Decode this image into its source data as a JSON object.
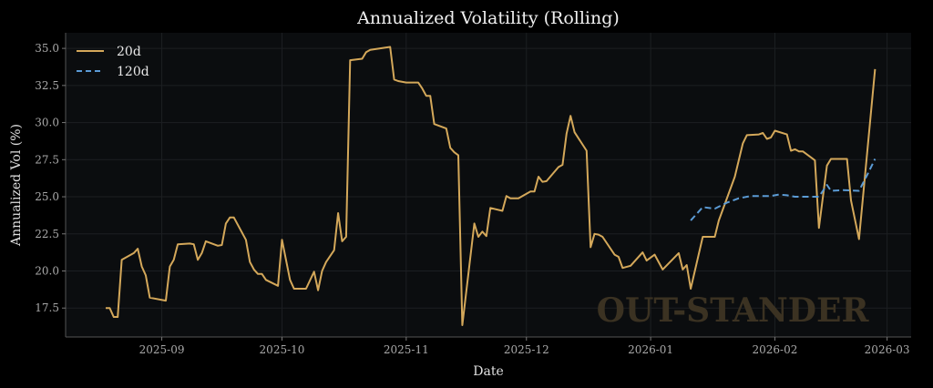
{
  "chart_data": {
    "type": "line",
    "title": "Annualized Volatility (Rolling)",
    "xlabel": "Date",
    "ylabel": "Annualized Vol (%)",
    "xlim": [
      "2025-08-08",
      "2026-03-07"
    ],
    "ylim": [
      15.55,
      36.05
    ],
    "x_ticks": [
      "2025-09",
      "2025-10",
      "2025-11",
      "2025-12",
      "2026-01",
      "2026-02",
      "2026-03"
    ],
    "y_ticks": [
      "17.5",
      "20.0",
      "22.5",
      "25.0",
      "27.5",
      "30.0",
      "32.5",
      "35.0"
    ],
    "grid": true,
    "legend_position": "top-left",
    "watermark": "OUT-STANDER",
    "series": [
      {
        "name": "20d",
        "color": "#d4a85a",
        "style": "solid",
        "points": [
          [
            "2025-08-18",
            17.5
          ],
          [
            "2025-08-19",
            17.5
          ],
          [
            "2025-08-20",
            16.9
          ],
          [
            "2025-08-21",
            16.9
          ],
          [
            "2025-08-22",
            20.75
          ],
          [
            "2025-08-25",
            21.2
          ],
          [
            "2025-08-26",
            21.5
          ],
          [
            "2025-08-27",
            20.3
          ],
          [
            "2025-08-28",
            19.7
          ],
          [
            "2025-08-29",
            18.2
          ],
          [
            "2025-09-02",
            18.0
          ],
          [
            "2025-09-03",
            20.3
          ],
          [
            "2025-09-04",
            20.75
          ],
          [
            "2025-09-05",
            21.8
          ],
          [
            "2025-09-08",
            21.85
          ],
          [
            "2025-09-09",
            21.8
          ],
          [
            "2025-09-10",
            20.75
          ],
          [
            "2025-09-11",
            21.2
          ],
          [
            "2025-09-12",
            22.0
          ],
          [
            "2025-09-15",
            21.7
          ],
          [
            "2025-09-16",
            21.75
          ],
          [
            "2025-09-17",
            23.2
          ],
          [
            "2025-09-18",
            23.6
          ],
          [
            "2025-09-19",
            23.6
          ],
          [
            "2025-09-22",
            22.1
          ],
          [
            "2025-09-23",
            20.6
          ],
          [
            "2025-09-24",
            20.1
          ],
          [
            "2025-09-25",
            19.8
          ],
          [
            "2025-09-26",
            19.8
          ],
          [
            "2025-09-27",
            19.4
          ],
          [
            "2025-09-30",
            19.0
          ],
          [
            "2025-10-01",
            22.1
          ],
          [
            "2025-10-03",
            19.4
          ],
          [
            "2025-10-04",
            18.8
          ],
          [
            "2025-10-07",
            18.8
          ],
          [
            "2025-10-09",
            19.95
          ],
          [
            "2025-10-10",
            18.7
          ],
          [
            "2025-10-11",
            20.0
          ],
          [
            "2025-10-12",
            20.6
          ],
          [
            "2025-10-14",
            21.4
          ],
          [
            "2025-10-15",
            23.9
          ],
          [
            "2025-10-16",
            22.0
          ],
          [
            "2025-10-17",
            22.3
          ],
          [
            "2025-10-18",
            34.2
          ],
          [
            "2025-10-21",
            34.3
          ],
          [
            "2025-10-22",
            34.75
          ],
          [
            "2025-10-23",
            34.9
          ],
          [
            "2025-10-28",
            35.1
          ],
          [
            "2025-10-29",
            32.9
          ],
          [
            "2025-10-30",
            32.8
          ],
          [
            "2025-11-01",
            32.7
          ],
          [
            "2025-11-04",
            32.7
          ],
          [
            "2025-11-05",
            32.3
          ],
          [
            "2025-11-06",
            31.8
          ],
          [
            "2025-11-07",
            31.8
          ],
          [
            "2025-11-08",
            29.9
          ],
          [
            "2025-11-11",
            29.6
          ],
          [
            "2025-11-12",
            28.3
          ],
          [
            "2025-11-13",
            28.0
          ],
          [
            "2025-11-14",
            27.8
          ],
          [
            "2025-11-15",
            16.35
          ],
          [
            "2025-11-18",
            23.2
          ],
          [
            "2025-11-19",
            22.3
          ],
          [
            "2025-11-20",
            22.65
          ],
          [
            "2025-11-21",
            22.35
          ],
          [
            "2025-11-22",
            24.25
          ],
          [
            "2025-11-25",
            24.05
          ],
          [
            "2025-11-26",
            25.05
          ],
          [
            "2025-11-27",
            24.9
          ],
          [
            "2025-11-29",
            24.9
          ],
          [
            "2025-12-02",
            25.35
          ],
          [
            "2025-12-03",
            25.35
          ],
          [
            "2025-12-04",
            26.35
          ],
          [
            "2025-12-05",
            26.0
          ],
          [
            "2025-12-06",
            26.05
          ],
          [
            "2025-12-09",
            27.0
          ],
          [
            "2025-12-10",
            27.15
          ],
          [
            "2025-12-11",
            29.25
          ],
          [
            "2025-12-12",
            30.45
          ],
          [
            "2025-12-13",
            29.35
          ],
          [
            "2025-12-16",
            28.1
          ],
          [
            "2025-12-17",
            21.6
          ],
          [
            "2025-12-18",
            22.5
          ],
          [
            "2025-12-19",
            22.45
          ],
          [
            "2025-12-20",
            22.3
          ],
          [
            "2025-12-23",
            21.1
          ],
          [
            "2025-12-24",
            20.95
          ],
          [
            "2025-12-25",
            20.2
          ],
          [
            "2025-12-27",
            20.35
          ],
          [
            "2025-12-30",
            21.25
          ],
          [
            "2025-12-31",
            20.7
          ],
          [
            "2026-01-02",
            21.1
          ],
          [
            "2026-01-04",
            20.1
          ],
          [
            "2026-01-08",
            21.2
          ],
          [
            "2026-01-09",
            20.1
          ],
          [
            "2026-01-10",
            20.4
          ],
          [
            "2026-01-11",
            18.8
          ],
          [
            "2026-01-14",
            22.3
          ],
          [
            "2026-01-17",
            22.3
          ],
          [
            "2026-01-18",
            23.4
          ],
          [
            "2026-01-22",
            26.35
          ],
          [
            "2026-01-24",
            28.6
          ],
          [
            "2026-01-25",
            29.15
          ],
          [
            "2026-01-28",
            29.2
          ],
          [
            "2026-01-29",
            29.3
          ],
          [
            "2026-01-30",
            28.9
          ],
          [
            "2026-01-31",
            29.0
          ],
          [
            "2026-02-01",
            29.45
          ],
          [
            "2026-02-04",
            29.2
          ],
          [
            "2026-02-05",
            28.1
          ],
          [
            "2026-02-06",
            28.2
          ],
          [
            "2026-02-07",
            28.05
          ],
          [
            "2026-02-08",
            28.05
          ],
          [
            "2026-02-11",
            27.45
          ],
          [
            "2026-02-12",
            22.9
          ],
          [
            "2026-02-14",
            27.1
          ],
          [
            "2026-02-15",
            27.55
          ],
          [
            "2026-02-19",
            27.55
          ],
          [
            "2026-02-20",
            24.75
          ],
          [
            "2026-02-22",
            22.15
          ],
          [
            "2026-02-26",
            33.6
          ]
        ]
      },
      {
        "name": "120d",
        "color": "#5b9bd5",
        "style": "dashed",
        "points": [
          [
            "2026-01-11",
            23.4
          ],
          [
            "2026-01-14",
            24.3
          ],
          [
            "2026-01-17",
            24.2
          ],
          [
            "2026-01-20",
            24.6
          ],
          [
            "2026-01-23",
            24.9
          ],
          [
            "2026-01-26",
            25.05
          ],
          [
            "2026-01-31",
            25.05
          ],
          [
            "2026-02-02",
            25.15
          ],
          [
            "2026-02-04",
            25.1
          ],
          [
            "2026-02-06",
            25.0
          ],
          [
            "2026-02-12",
            25.0
          ],
          [
            "2026-02-14",
            25.8
          ],
          [
            "2026-02-15",
            25.4
          ],
          [
            "2026-02-18",
            25.45
          ],
          [
            "2026-02-22",
            25.4
          ],
          [
            "2026-02-24",
            26.45
          ],
          [
            "2026-02-26",
            27.55
          ]
        ]
      }
    ]
  }
}
